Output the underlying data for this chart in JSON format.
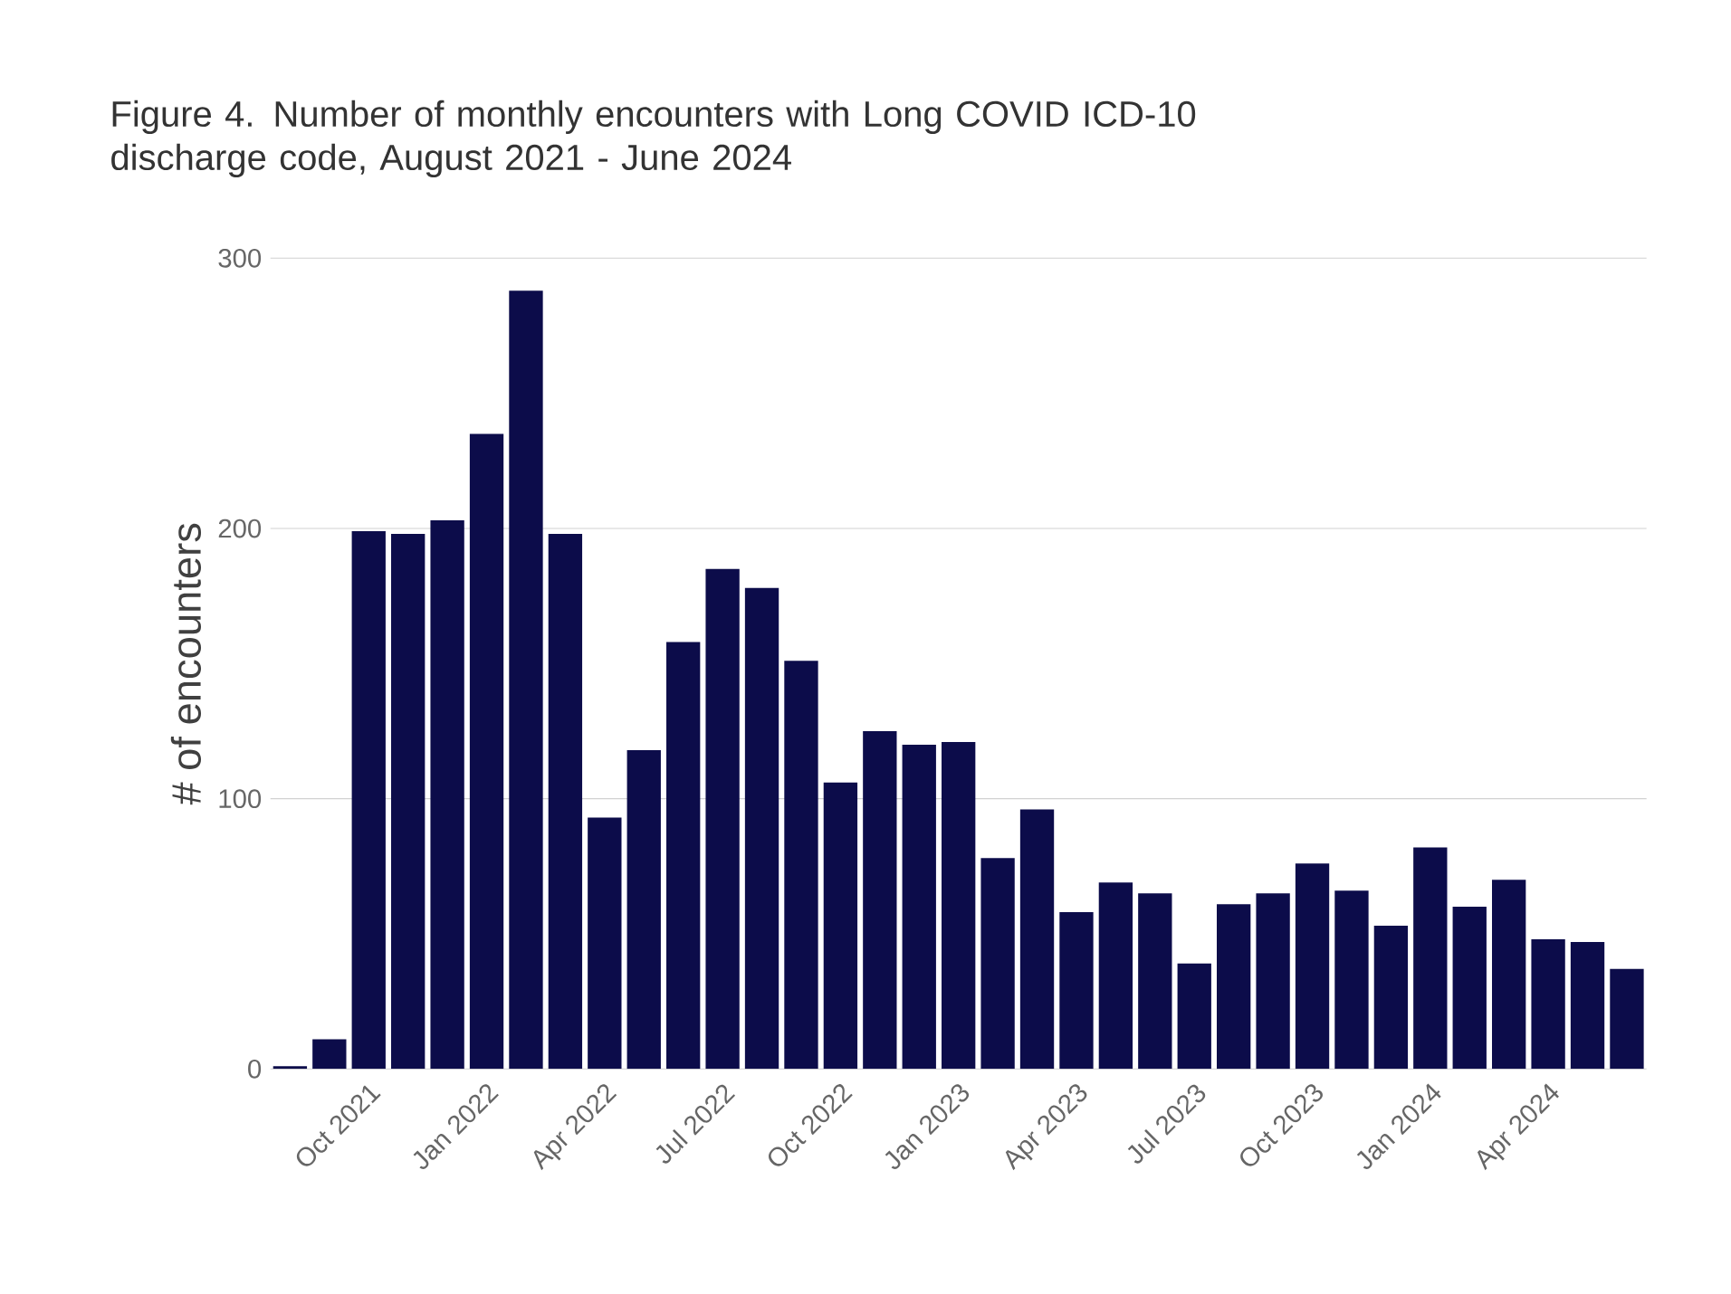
{
  "chart_data": {
    "type": "bar",
    "title": "Figure 4. Number of monthly encounters with Long COVID ICD-10 discharge code, August 2021 - June 2024",
    "ylabel": "# of encounters",
    "categories": [
      null,
      null,
      "Oct 2021",
      null,
      null,
      "Jan 2022",
      null,
      null,
      "Apr 2022",
      null,
      null,
      "Jul 2022",
      null,
      null,
      "Oct 2022",
      null,
      null,
      "Jan 2023",
      null,
      null,
      "Apr 2023",
      null,
      null,
      "Jul 2023",
      null,
      null,
      "Oct 2023",
      null,
      null,
      "Jan 2024",
      null,
      null,
      "Apr 2024",
      null,
      null
    ],
    "values": [
      1,
      11,
      199,
      198,
      203,
      235,
      288,
      198,
      93,
      118,
      158,
      185,
      178,
      151,
      106,
      125,
      120,
      121,
      78,
      96,
      58,
      69,
      65,
      39,
      61,
      65,
      76,
      66,
      53,
      82,
      60,
      70,
      48,
      47,
      37
    ],
    "color": "#0c0c4a",
    "ylim": [
      0,
      300
    ],
    "yticks": [
      0,
      100,
      200,
      300
    ],
    "grid": "y"
  }
}
